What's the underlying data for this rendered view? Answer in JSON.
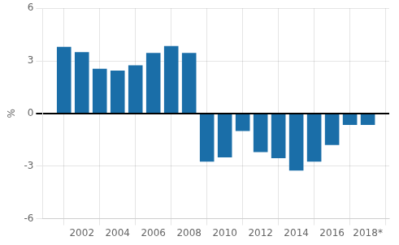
{
  "chart_data": {
    "type": "bar",
    "x": [
      2001,
      2002,
      2003,
      2004,
      2005,
      2006,
      2007,
      2008,
      2009,
      2010,
      2011,
      2012,
      2013,
      2014,
      2015,
      2016,
      2017,
      2018
    ],
    "values": [
      3.8,
      3.5,
      2.55,
      2.45,
      2.75,
      3.45,
      3.85,
      3.45,
      -2.75,
      -2.5,
      -1.0,
      -2.2,
      -2.55,
      -3.25,
      -2.75,
      -1.8,
      -0.65,
      -0.65
    ],
    "color": "#1a6ea8",
    "xlim": [
      1999.8,
      2019.2
    ],
    "xticks": [
      2002,
      2004,
      2006,
      2008,
      2010,
      2012,
      2014,
      2016,
      {
        "value": 2018,
        "label": "2018*"
      }
    ],
    "ylim": [
      -6,
      6
    ],
    "yticks": [
      -6,
      -3,
      0,
      3,
      6
    ],
    "ylabel": "%",
    "grid": true
  }
}
